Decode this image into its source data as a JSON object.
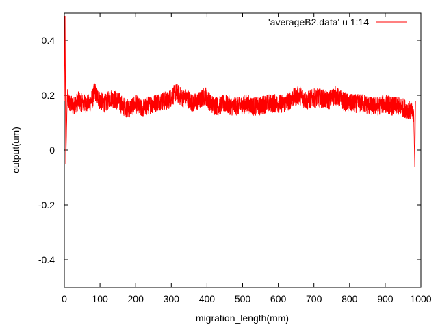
{
  "chart_data": {
    "type": "line",
    "title": "",
    "xlabel": "migration_length(mm)",
    "ylabel": "output(um)",
    "xlim": [
      0,
      1000
    ],
    "ylim": [
      -0.5,
      0.5
    ],
    "xticks": [
      0,
      100,
      200,
      300,
      400,
      500,
      600,
      700,
      800,
      900,
      1000
    ],
    "yticks": [
      -0.4,
      -0.2,
      0,
      0.2,
      0.4
    ],
    "xtick_labels": [
      "0",
      "100",
      "200",
      "300",
      "400",
      "500",
      "600",
      "700",
      "800",
      "900",
      "1000"
    ],
    "ytick_labels": [
      "-0.4",
      "-0.2",
      "0",
      "0.2",
      "0.4"
    ],
    "grid": false,
    "legend_position": "top-right",
    "series": [
      {
        "name": "'averageB2.data' u 1:14",
        "color": "#ff0000",
        "x": [
          0,
          2,
          4,
          8,
          15,
          25,
          40,
          55,
          70,
          80,
          85,
          90,
          100,
          115,
          130,
          150,
          165,
          180,
          200,
          215,
          230,
          250,
          270,
          290,
          305,
          315,
          330,
          345,
          360,
          380,
          395,
          410,
          430,
          450,
          470,
          490,
          510,
          530,
          550,
          565,
          580,
          600,
          620,
          640,
          660,
          680,
          700,
          720,
          740,
          760,
          780,
          800,
          820,
          840,
          860,
          880,
          900,
          920,
          940,
          960,
          975,
          980,
          983,
          985
        ],
        "y": [
          0.18,
          0.49,
          -0.05,
          0.19,
          0.17,
          0.16,
          0.18,
          0.17,
          0.17,
          0.19,
          0.22,
          0.2,
          0.18,
          0.17,
          0.19,
          0.18,
          0.16,
          0.15,
          0.17,
          0.15,
          0.16,
          0.17,
          0.18,
          0.18,
          0.2,
          0.21,
          0.19,
          0.19,
          0.17,
          0.18,
          0.2,
          0.17,
          0.16,
          0.17,
          0.16,
          0.16,
          0.17,
          0.16,
          0.16,
          0.17,
          0.17,
          0.17,
          0.17,
          0.19,
          0.2,
          0.18,
          0.19,
          0.19,
          0.18,
          0.2,
          0.18,
          0.17,
          0.17,
          0.17,
          0.16,
          0.16,
          0.17,
          0.16,
          0.16,
          0.15,
          0.14,
          0.13,
          -0.06,
          0.18
        ]
      }
    ]
  }
}
